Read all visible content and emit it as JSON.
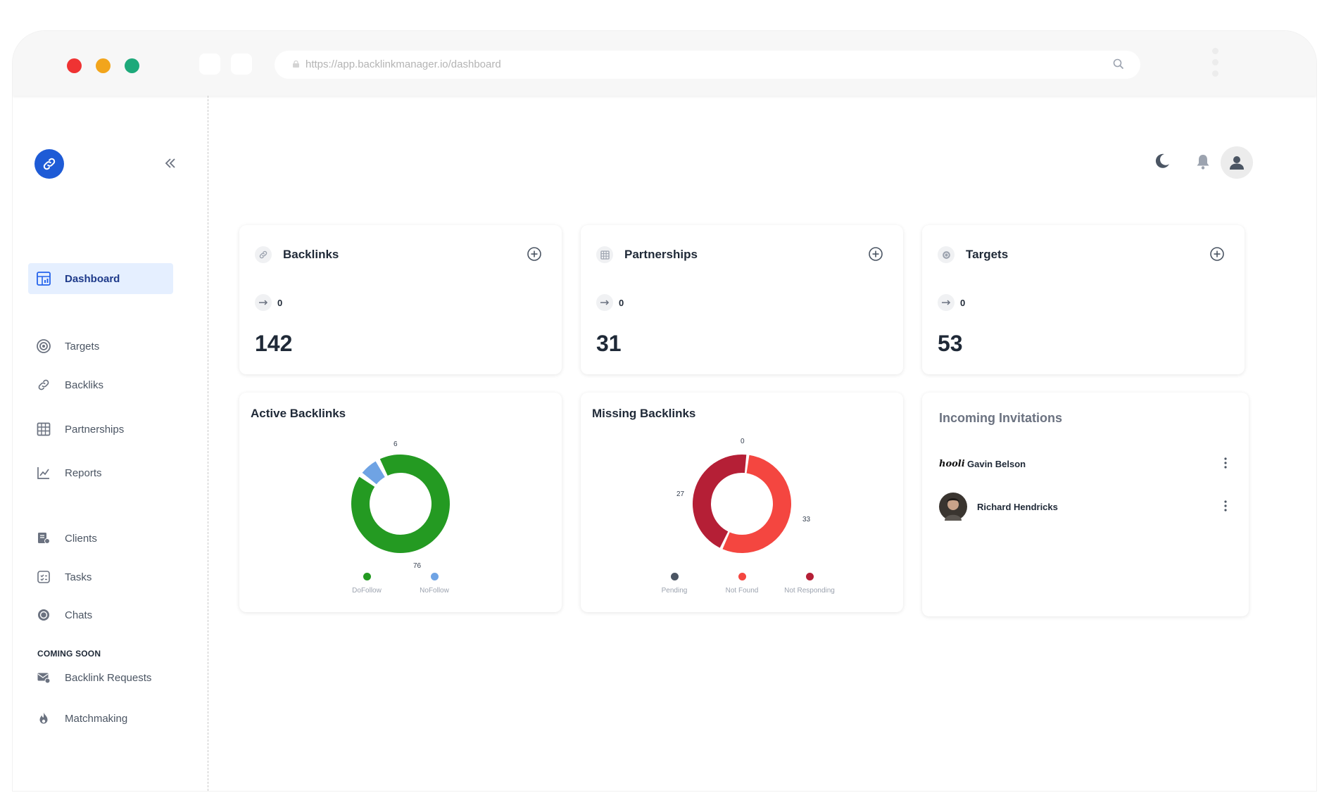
{
  "browser": {
    "url": "https://app.backlinkmanager.io/dashboard"
  },
  "sidebar": {
    "items": [
      {
        "label": "Dashboard",
        "icon": "dashboard-icon"
      },
      {
        "label": "Targets",
        "icon": "target-icon"
      },
      {
        "label": "Backliks",
        "icon": "link-icon"
      },
      {
        "label": "Partnerships",
        "icon": "grid-icon"
      },
      {
        "label": "Reports",
        "icon": "chart-icon"
      },
      {
        "label": "Clients",
        "icon": "clients-icon"
      },
      {
        "label": "Tasks",
        "icon": "tasks-icon"
      },
      {
        "label": "Chats",
        "icon": "chat-icon"
      }
    ],
    "section_label": "COMING SOON",
    "soon_items": [
      {
        "label": "Backlink Requests",
        "icon": "mail-icon"
      },
      {
        "label": "Matchmaking",
        "icon": "fire-icon"
      }
    ]
  },
  "stats": [
    {
      "title": "Backlinks",
      "delta": "0",
      "value": "142"
    },
    {
      "title": "Partnerships",
      "delta": "0",
      "value": "31"
    },
    {
      "title": "Targets",
      "delta": "0",
      "value": "53"
    }
  ],
  "chart_data": [
    {
      "type": "pie",
      "title": "Active Backlinks",
      "categories": [
        "DoFollow",
        "NoFollow"
      ],
      "values": [
        76,
        6
      ],
      "colors": [
        "#249a22",
        "#6fa3e4"
      ],
      "labels": [
        "76",
        "6"
      ],
      "legend": "bottom"
    },
    {
      "type": "pie",
      "title": "Missing Backlinks",
      "categories": [
        "Pending",
        "Not Found",
        "Not Responding"
      ],
      "values": [
        0,
        33,
        27
      ],
      "colors": [
        "#4b5563",
        "#f44640",
        "#b51f36"
      ],
      "labels": [
        "0",
        "33",
        "27"
      ],
      "legend": "bottom"
    }
  ],
  "invitations": {
    "title": "Incoming Invitations",
    "logo_text": "hooli",
    "items": [
      {
        "name": "Gavin Belson"
      },
      {
        "name": "Richard Hendricks"
      }
    ]
  }
}
